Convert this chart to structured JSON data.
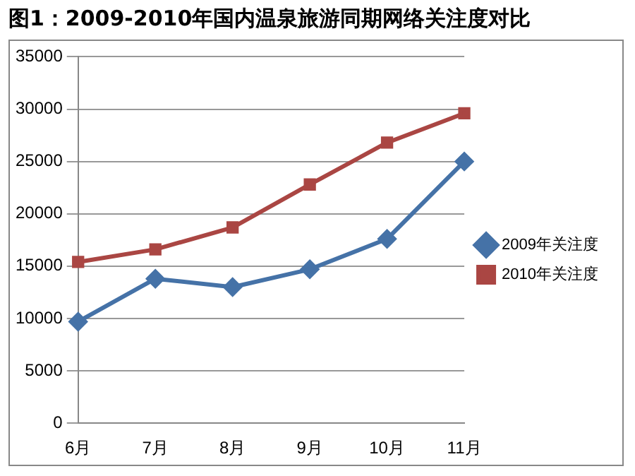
{
  "chart_data": {
    "type": "line",
    "title": "图1：2009-2010年国内温泉旅游同期网络关注度对比",
    "categories": [
      "6月",
      "7月",
      "8月",
      "9月",
      "10月",
      "11月"
    ],
    "series": [
      {
        "name": "2009年关注度",
        "color": "#4572a7",
        "marker": "diamond",
        "values": [
          9700,
          13800,
          13000,
          14700,
          17600,
          25000
        ]
      },
      {
        "name": "2010年关注度",
        "color": "#aa4643",
        "marker": "square",
        "values": [
          15400,
          16600,
          18700,
          22800,
          26800,
          29600
        ]
      }
    ],
    "ylim": [
      0,
      35000
    ],
    "yticks": [
      0,
      5000,
      10000,
      15000,
      20000,
      25000,
      30000,
      35000
    ],
    "grid": "y",
    "legend": "right"
  }
}
